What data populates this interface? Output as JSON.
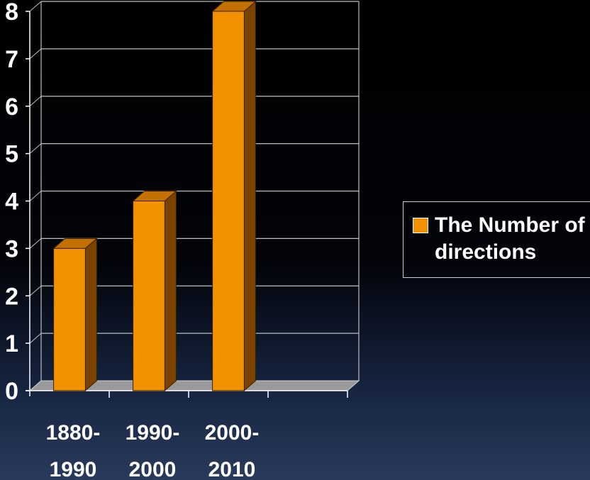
{
  "chart_data": {
    "type": "bar",
    "style": "3d-column",
    "categories": [
      "1880-\n1990",
      "1990-\n2000",
      "2000-\n2010",
      ""
    ],
    "series": [
      {
        "name": "The Number of directions",
        "values": [
          3,
          4,
          8,
          null
        ]
      }
    ],
    "yticks": [
      "0",
      "1",
      "2",
      "3",
      "4",
      "5",
      "6",
      "7",
      "8"
    ],
    "ylim": [
      0,
      8
    ],
    "grid": true,
    "legend_position": "right",
    "title": "",
    "xlabel": "",
    "ylabel": ""
  },
  "colors": {
    "bar_front": "#f39200",
    "bar_side": "#7a4300",
    "bar_top": "#c27000",
    "floor": "#9a9a9a",
    "gridline": "#bfbfbf",
    "text": "#ffffff"
  }
}
